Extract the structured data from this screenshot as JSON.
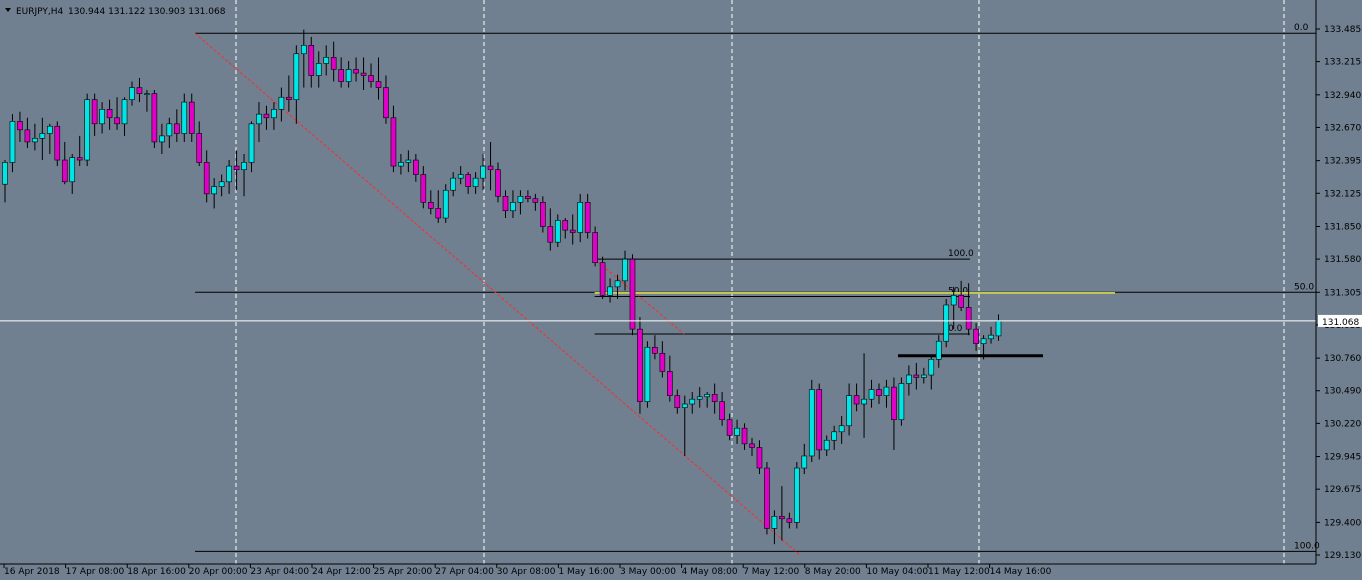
{
  "header": {
    "symbol": "EURJPY,H4",
    "ohlc": "130.944 131.122 130.903 131.068"
  },
  "colors": {
    "background": "#708090",
    "bull": "#00e5e5",
    "bear": "#e000c8",
    "wick": "#000000",
    "price_line": "#ffffff",
    "trendline": "#ff2a2a",
    "fib_yellow": "#e8e84a"
  },
  "current_price": {
    "value": 131.068,
    "label": "131.068"
  },
  "chart_data": {
    "type": "candlestick",
    "timeframe": "H4",
    "ylim": [
      129.13,
      133.6
    ],
    "y_ticks": [
      "133.485",
      "133.215",
      "132.940",
      "132.670",
      "132.395",
      "132.125",
      "131.850",
      "131.580",
      "131.305",
      "131.035",
      "130.760",
      "130.490",
      "130.220",
      "129.945",
      "129.675",
      "129.400",
      "129.130"
    ],
    "x_ticks": [
      "16 Apr 2018",
      "17 Apr 08:00",
      "18 Apr 16:00",
      "20 Apr 00:00",
      "23 Apr 04:00",
      "24 Apr 12:00",
      "25 Apr 20:00",
      "27 Apr 04:00",
      "30 Apr 08:00",
      "1 May 16:00",
      "3 May 00:00",
      "4 May 08:00",
      "7 May 12:00",
      "8 May 20:00",
      "10 May 04:00",
      "11 May 12:00",
      "14 May 16:00"
    ],
    "candles": [
      [
        132.2,
        132.4,
        132.05,
        132.38
      ],
      [
        132.38,
        132.78,
        132.3,
        132.72
      ],
      [
        132.72,
        132.8,
        132.55,
        132.65
      ],
      [
        132.65,
        132.75,
        132.5,
        132.55
      ],
      [
        132.55,
        132.7,
        132.48,
        132.58
      ],
      [
        132.58,
        132.75,
        132.4,
        132.62
      ],
      [
        132.62,
        132.7,
        132.45,
        132.68
      ],
      [
        132.68,
        132.72,
        132.35,
        132.4
      ],
      [
        132.4,
        132.55,
        132.2,
        132.22
      ],
      [
        132.22,
        132.45,
        132.12,
        132.42
      ],
      [
        132.42,
        132.6,
        132.35,
        132.4
      ],
      [
        132.4,
        132.95,
        132.35,
        132.9
      ],
      [
        132.9,
        132.95,
        132.6,
        132.7
      ],
      [
        132.7,
        132.88,
        132.62,
        132.82
      ],
      [
        132.82,
        132.9,
        132.65,
        132.75
      ],
      [
        132.75,
        132.92,
        132.65,
        132.7
      ],
      [
        132.7,
        132.92,
        132.6,
        132.9
      ],
      [
        132.9,
        133.05,
        132.85,
        133.0
      ],
      [
        133.0,
        133.08,
        132.88,
        132.95
      ],
      [
        132.95,
        132.98,
        132.8,
        132.95
      ],
      [
        132.95,
        132.98,
        132.5,
        132.55
      ],
      [
        132.55,
        132.7,
        132.45,
        132.6
      ],
      [
        132.6,
        132.75,
        132.5,
        132.7
      ],
      [
        132.7,
        132.82,
        132.55,
        132.62
      ],
      [
        132.62,
        132.95,
        132.55,
        132.88
      ],
      [
        132.88,
        132.95,
        132.55,
        132.62
      ],
      [
        132.62,
        132.72,
        132.35,
        132.38
      ],
      [
        132.38,
        132.48,
        132.05,
        132.12
      ],
      [
        132.12,
        132.25,
        132.0,
        132.18
      ],
      [
        132.18,
        132.28,
        132.1,
        132.22
      ],
      [
        132.22,
        132.4,
        132.12,
        132.35
      ],
      [
        132.35,
        132.48,
        132.15,
        132.32
      ],
      [
        132.32,
        132.45,
        132.1,
        132.38
      ],
      [
        132.38,
        132.72,
        132.3,
        132.7
      ],
      [
        132.7,
        132.88,
        132.55,
        132.78
      ],
      [
        132.78,
        132.85,
        132.65,
        132.75
      ],
      [
        132.75,
        132.88,
        132.65,
        132.82
      ],
      [
        132.82,
        133.0,
        132.72,
        132.92
      ],
      [
        132.92,
        133.1,
        132.8,
        132.9
      ],
      [
        132.9,
        133.35,
        132.7,
        133.28
      ],
      [
        133.28,
        133.48,
        133.0,
        133.35
      ],
      [
        133.35,
        133.42,
        133.0,
        133.1
      ],
      [
        133.1,
        133.3,
        133.0,
        133.2
      ],
      [
        133.2,
        133.35,
        133.1,
        133.25
      ],
      [
        133.25,
        133.38,
        133.05,
        133.15
      ],
      [
        133.15,
        133.25,
        133.0,
        133.05
      ],
      [
        133.05,
        133.22,
        133.0,
        133.15
      ],
      [
        133.15,
        133.25,
        133.05,
        133.12
      ],
      [
        133.12,
        133.25,
        132.98,
        133.1
      ],
      [
        133.1,
        133.2,
        133.0,
        133.05
      ],
      [
        133.05,
        133.25,
        132.9,
        133.0
      ],
      [
        133.0,
        133.1,
        132.7,
        132.75
      ],
      [
        132.75,
        132.85,
        132.3,
        132.35
      ],
      [
        132.35,
        132.45,
        132.28,
        132.38
      ],
      [
        132.38,
        132.48,
        132.3,
        132.4
      ],
      [
        132.4,
        132.45,
        132.22,
        132.28
      ],
      [
        132.28,
        132.35,
        132.0,
        132.05
      ],
      [
        132.05,
        132.15,
        131.95,
        132.0
      ],
      [
        132.0,
        132.15,
        131.88,
        131.92
      ],
      [
        131.92,
        132.2,
        131.88,
        132.15
      ],
      [
        132.15,
        132.3,
        132.1,
        132.25
      ],
      [
        132.25,
        132.35,
        132.2,
        132.28
      ],
      [
        132.28,
        132.3,
        132.12,
        132.18
      ],
      [
        132.18,
        132.3,
        132.12,
        132.25
      ],
      [
        132.25,
        132.45,
        132.15,
        132.35
      ],
      [
        132.35,
        132.55,
        132.15,
        132.32
      ],
      [
        132.32,
        132.38,
        132.05,
        132.1
      ],
      [
        132.1,
        132.15,
        131.92,
        131.98
      ],
      [
        131.98,
        132.15,
        131.92,
        132.05
      ],
      [
        132.05,
        132.15,
        131.95,
        132.1
      ],
      [
        132.1,
        132.15,
        132.05,
        132.08
      ],
      [
        132.08,
        132.12,
        131.98,
        132.05
      ],
      [
        132.05,
        132.1,
        131.8,
        131.85
      ],
      [
        131.85,
        132.0,
        131.65,
        131.72
      ],
      [
        131.72,
        131.95,
        131.68,
        131.9
      ],
      [
        131.9,
        131.92,
        131.75,
        131.82
      ],
      [
        131.82,
        131.95,
        131.7,
        131.8
      ],
      [
        131.8,
        132.12,
        131.72,
        132.05
      ],
      [
        132.05,
        132.12,
        131.75,
        131.8
      ],
      [
        131.8,
        131.85,
        131.52,
        131.55
      ],
      [
        131.55,
        131.6,
        131.25,
        131.28
      ],
      [
        131.28,
        131.42,
        131.22,
        131.35
      ],
      [
        131.35,
        131.45,
        131.25,
        131.4
      ],
      [
        131.4,
        131.65,
        131.32,
        131.58
      ],
      [
        131.58,
        131.62,
        130.95,
        131.0
      ],
      [
        131.0,
        131.1,
        130.3,
        130.4
      ],
      [
        130.4,
        130.9,
        130.35,
        130.85
      ],
      [
        130.85,
        130.95,
        130.75,
        130.8
      ],
      [
        130.8,
        130.9,
        130.6,
        130.65
      ],
      [
        130.65,
        130.78,
        130.4,
        130.45
      ],
      [
        130.45,
        130.5,
        130.3,
        130.35
      ],
      [
        130.35,
        130.45,
        129.95,
        130.38
      ],
      [
        130.38,
        130.48,
        130.3,
        130.42
      ],
      [
        130.42,
        130.52,
        130.35,
        130.44
      ],
      [
        130.44,
        130.48,
        130.35,
        130.46
      ],
      [
        130.46,
        130.55,
        130.3,
        130.4
      ],
      [
        130.4,
        130.48,
        130.2,
        130.25
      ],
      [
        130.25,
        130.3,
        130.08,
        130.12
      ],
      [
        130.12,
        130.25,
        130.05,
        130.18
      ],
      [
        130.18,
        130.22,
        130.0,
        130.05
      ],
      [
        130.05,
        130.1,
        129.95,
        130.02
      ],
      [
        130.02,
        130.08,
        129.8,
        129.85
      ],
      [
        129.85,
        129.9,
        129.3,
        129.35
      ],
      [
        129.35,
        129.5,
        129.22,
        129.45
      ],
      [
        129.45,
        129.7,
        129.25,
        129.43
      ],
      [
        129.43,
        129.48,
        129.35,
        129.4
      ],
      [
        129.4,
        129.9,
        129.35,
        129.85
      ],
      [
        129.85,
        130.05,
        129.8,
        129.95
      ],
      [
        129.95,
        130.58,
        129.9,
        130.5
      ],
      [
        130.5,
        130.55,
        129.92,
        130.0
      ],
      [
        130.0,
        130.12,
        129.95,
        130.08
      ],
      [
        130.08,
        130.2,
        130.0,
        130.15
      ],
      [
        130.15,
        130.28,
        130.05,
        130.2
      ],
      [
        130.2,
        130.55,
        130.12,
        130.45
      ],
      [
        130.45,
        130.55,
        130.32,
        130.38
      ],
      [
        130.38,
        130.8,
        130.1,
        130.42
      ],
      [
        130.42,
        130.58,
        130.35,
        130.5
      ],
      [
        130.5,
        130.55,
        130.38,
        130.45
      ],
      [
        130.45,
        130.58,
        130.35,
        130.52
      ],
      [
        130.52,
        130.6,
        130.0,
        130.25
      ],
      [
        130.25,
        130.6,
        130.2,
        130.55
      ],
      [
        130.55,
        130.7,
        130.45,
        130.62
      ],
      [
        130.62,
        130.72,
        130.5,
        130.6
      ],
      [
        130.6,
        130.68,
        130.55,
        130.62
      ],
      [
        130.62,
        130.78,
        130.5,
        130.75
      ],
      [
        130.75,
        130.95,
        130.68,
        130.9
      ],
      [
        130.9,
        131.25,
        130.85,
        131.2
      ],
      [
        131.2,
        131.35,
        131.0,
        131.28
      ],
      [
        131.28,
        131.4,
        131.15,
        131.18
      ],
      [
        131.18,
        131.38,
        130.95,
        131.0
      ],
      [
        131.0,
        131.05,
        130.82,
        130.88
      ],
      [
        130.88,
        130.95,
        130.75,
        130.92
      ],
      [
        130.92,
        131.02,
        130.88,
        130.95
      ],
      [
        130.944,
        131.122,
        130.903,
        131.068
      ]
    ],
    "trendline": {
      "from": [
        0,
        133.45
      ],
      "to": [
        96,
        129.13
      ]
    },
    "hlines": [
      {
        "name": "fib-a-0",
        "y": 133.45,
        "from": 23,
        "to": 160,
        "label": "0.0"
      },
      {
        "name": "fib-a-50",
        "y": 131.305,
        "from": 23,
        "to": 160,
        "label": "50.0"
      },
      {
        "name": "fib-a-100",
        "y": 129.16,
        "from": 23,
        "to": 160,
        "label": "100.0"
      },
      {
        "name": "fib-b-100",
        "y": 131.58,
        "from": 78,
        "to": 116,
        "label": "100.0"
      },
      {
        "name": "fib-b-50",
        "y": 131.27,
        "from": 78,
        "to": 116,
        "label": "50.0"
      },
      {
        "name": "fib-b-0",
        "y": 130.96,
        "from": 78,
        "to": 116,
        "label": "0.0"
      }
    ],
    "yellow_line": {
      "y": 131.3,
      "from": 78,
      "to": 134
    },
    "support_line": {
      "y": 130.78,
      "from": 108,
      "to": 126
    }
  }
}
